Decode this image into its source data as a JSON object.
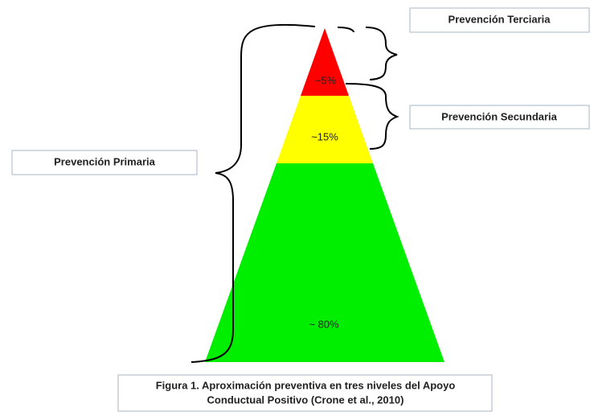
{
  "labels": {
    "tertiary": "Prevención Terciaria",
    "secondary": "Prevención Secundaria",
    "primary": "Prevención Primaria"
  },
  "levels": [
    {
      "label": "~5%"
    },
    {
      "label": "~15%"
    },
    {
      "label": "~ 80%"
    }
  ],
  "caption": [
    "Figura 1. Aproximación preventiva en tres niveles del Apoyo",
    "Conductual Positivo (Crone et al., 2010)"
  ]
}
